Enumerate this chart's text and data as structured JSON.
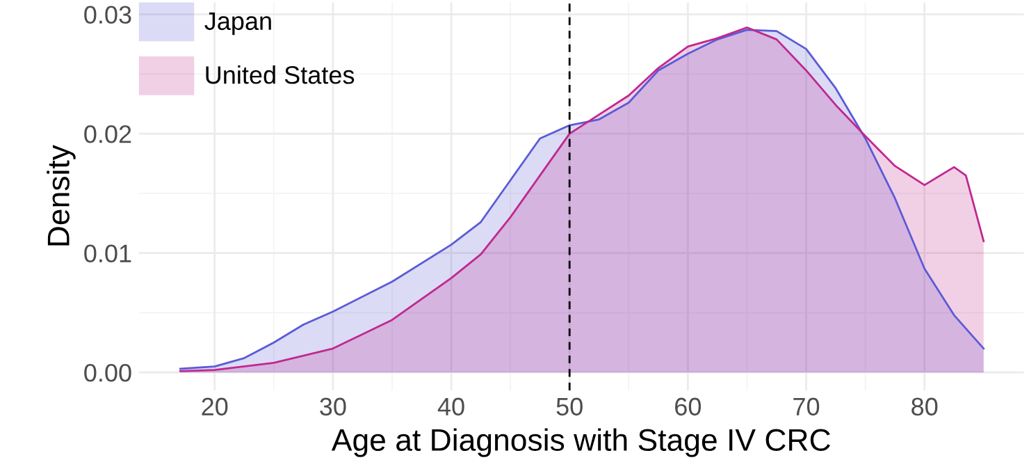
{
  "chart_data": {
    "type": "area",
    "xlabel": "Age at Diagnosis with Stage IV CRC",
    "ylabel": "Density",
    "xlim": [
      13.6,
      88.4
    ],
    "ylim": [
      -0.0015,
      0.031
    ],
    "xticks": [
      20,
      30,
      40,
      50,
      60,
      70,
      80
    ],
    "yticks": [
      {
        "value": 0,
        "label": "0.00"
      },
      {
        "value": 0.01,
        "label": "0.01"
      },
      {
        "value": 0.02,
        "label": "0.02"
      },
      {
        "value": 0.03,
        "label": "0.03"
      }
    ],
    "grid": true,
    "legend": "top left",
    "ref_lines": [
      {
        "axis": "x",
        "value": 50,
        "label": null,
        "color": "#000000",
        "line_style": "dashed"
      }
    ],
    "series": [
      {
        "name": "Japan",
        "color": "#5b5bd6",
        "x": [
          17.1,
          20,
          22.5,
          25,
          27.5,
          30,
          35,
          40,
          42.5,
          45,
          47.5,
          50,
          52.5,
          55,
          57.5,
          60,
          62.5,
          65,
          67.5,
          70,
          72.5,
          75,
          77.5,
          80,
          82.5,
          85
        ],
        "values": [
          0.0003,
          0.0005,
          0.0012,
          0.0025,
          0.004,
          0.0051,
          0.0076,
          0.0107,
          0.0126,
          0.0161,
          0.0196,
          0.0207,
          0.0212,
          0.0226,
          0.0253,
          0.0267,
          0.0279,
          0.0287,
          0.0286,
          0.0271,
          0.0238,
          0.0196,
          0.0146,
          0.0087,
          0.0048,
          0.002
        ]
      },
      {
        "name": "United States",
        "color": "#c0288f",
        "x": [
          17.1,
          20,
          25,
          30,
          35,
          40,
          42.5,
          45,
          47.5,
          50,
          52.5,
          55,
          57.5,
          60,
          62.5,
          65,
          67.5,
          70,
          72.5,
          75,
          77.5,
          80,
          82.5,
          83.5,
          85
        ],
        "values": [
          0.0001,
          0.0002,
          0.0008,
          0.002,
          0.0044,
          0.0079,
          0.0099,
          0.013,
          0.0165,
          0.02,
          0.0216,
          0.0232,
          0.0255,
          0.0273,
          0.028,
          0.0289,
          0.0279,
          0.0253,
          0.0224,
          0.0198,
          0.0173,
          0.0157,
          0.0172,
          0.0165,
          0.011
        ]
      }
    ]
  }
}
